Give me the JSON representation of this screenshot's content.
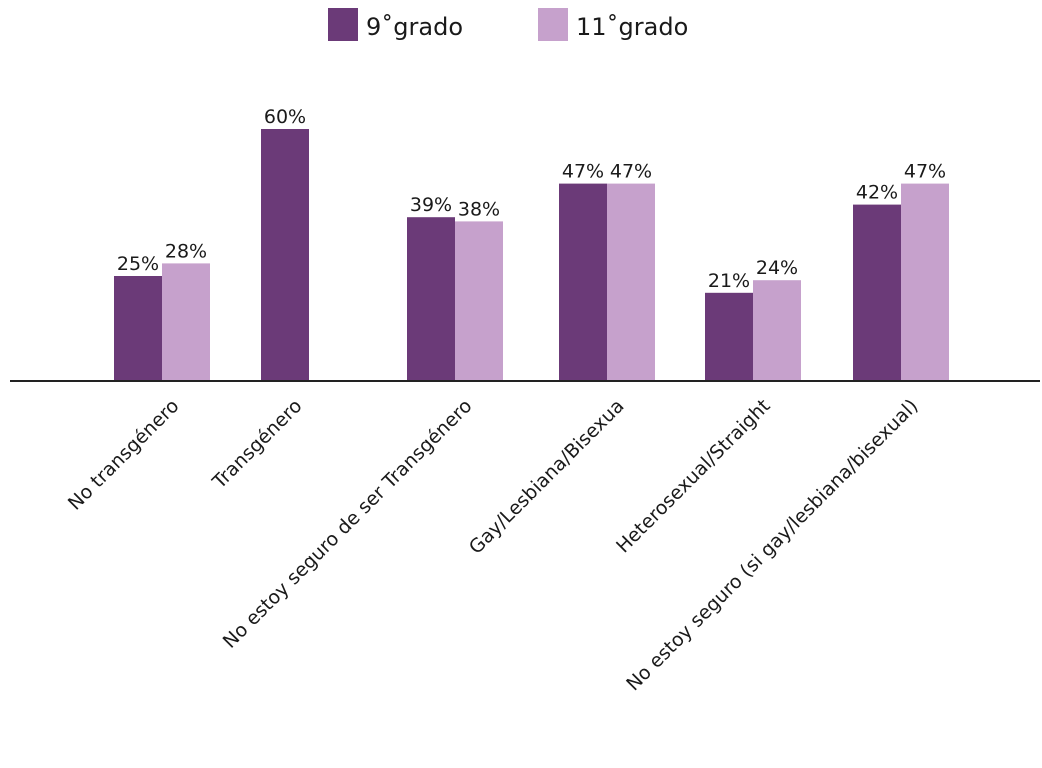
{
  "chart_data": {
    "type": "bar",
    "categories": [
      "No transgénero",
      "Transgénero",
      "No estoy seguro de ser Transgénero",
      "Gay/Lesbiana/Bisexua",
      "Heterosexual/Straight",
      "No estoy seguro (si gay/lesbiana/bisexual)"
    ],
    "series": [
      {
        "name": "9˚grado",
        "color": "#6b3a78",
        "values": [
          25,
          60,
          39,
          47,
          21,
          42
        ],
        "labels": [
          "25%",
          "60%",
          "39%",
          "47%",
          "21%",
          "42%"
        ]
      },
      {
        "name": "11˚grado",
        "color": "#c6a1cc",
        "values": [
          28,
          null,
          38,
          47,
          24,
          47
        ],
        "labels": [
          "28%",
          "",
          "38%",
          "47%",
          "24%",
          "47%"
        ]
      }
    ],
    "ylim": [
      0,
      60
    ],
    "grid": false,
    "legend_position": "top-center"
  }
}
